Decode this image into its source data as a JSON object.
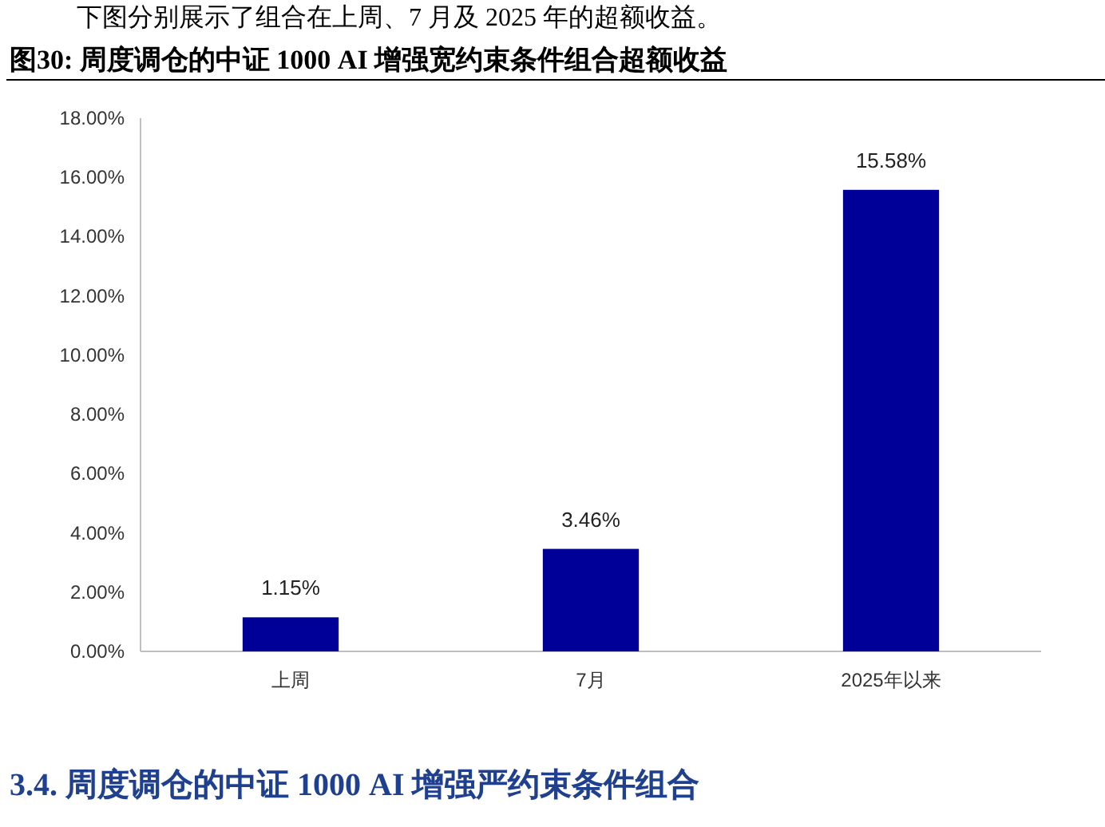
{
  "chart_data": {
    "type": "bar",
    "title": "图30:  周度调仓的中证 1000 AI 增强宽约束条件组合超额收益",
    "annotations": [
      "下图分别展示了组合在上周、7 月及 2025 年的超额收益。",
      "3.4.   周度调仓的中证 1000 AI 增强严约束条件组合"
    ],
    "categories": [
      "上周",
      "7月",
      "2025年以来"
    ],
    "values": [
      1.15,
      3.46,
      15.58
    ],
    "value_labels": [
      "1.15%",
      "3.46%",
      "15.58%"
    ],
    "color": "#000099",
    "ylim": [
      0,
      18
    ],
    "yticks": [
      {
        "value": 0,
        "label": "0.00%"
      },
      {
        "value": 2,
        "label": "2.00%"
      },
      {
        "value": 4,
        "label": "4.00%"
      },
      {
        "value": 6,
        "label": "6.00%"
      },
      {
        "value": 8,
        "label": "8.00%"
      },
      {
        "value": 10,
        "label": "10.00%"
      },
      {
        "value": 12,
        "label": "12.00%"
      },
      {
        "value": 14,
        "label": "14.00%"
      },
      {
        "value": 16,
        "label": "16.00%"
      },
      {
        "value": 18,
        "label": "18.00%"
      }
    ]
  }
}
